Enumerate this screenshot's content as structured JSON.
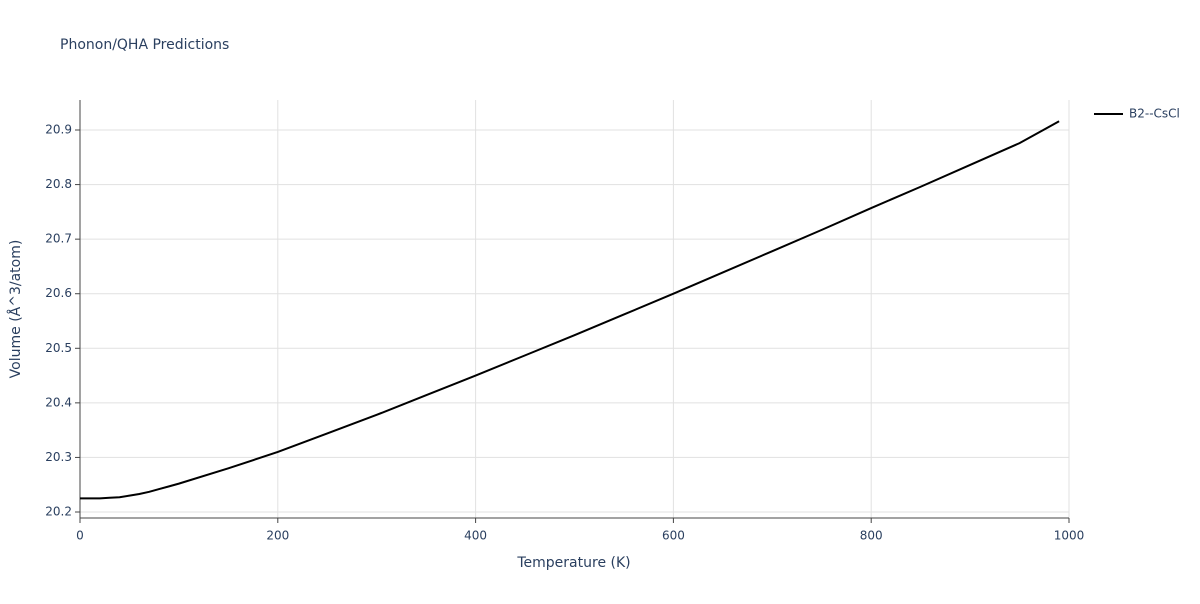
{
  "chart_data": {
    "type": "line",
    "title": "Phonon/QHA Predictions",
    "x_label": "Temperature (K)",
    "y_label": "Volume (Å^3/atom)",
    "x": [
      0,
      10,
      20,
      30,
      40,
      50,
      60,
      70,
      80,
      90,
      100,
      150,
      200,
      250,
      300,
      350,
      400,
      450,
      500,
      550,
      600,
      650,
      700,
      750,
      800,
      850,
      900,
      950,
      990
    ],
    "series": [
      {
        "name": "B2--CsCl",
        "color": "#000000",
        "values": [
          20.225,
          20.225,
          20.225,
          20.226,
          20.227,
          20.23,
          20.233,
          20.237,
          20.242,
          20.247,
          20.252,
          20.28,
          20.31,
          20.344,
          20.378,
          20.414,
          20.45,
          20.487,
          20.524,
          20.562,
          20.6,
          20.639,
          20.678,
          20.717,
          20.757,
          20.796,
          20.836,
          20.876,
          20.916
        ]
      }
    ],
    "xlim": [
      0,
      1000
    ],
    "xticks": [
      0,
      200,
      400,
      600,
      800,
      1000
    ],
    "ylim": [
      20.189,
      20.955
    ],
    "yticks": [
      20.2,
      20.3,
      20.4,
      20.5,
      20.6,
      20.7,
      20.8,
      20.9
    ],
    "grid": true,
    "legend": "right"
  }
}
